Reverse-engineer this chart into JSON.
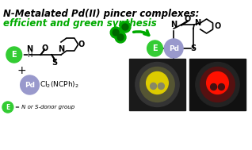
{
  "title_line1": "N-Metalated Pd(II) pincer complexes:",
  "title_line2": "efficient and green synthesis",
  "title_color": "#000000",
  "subtitle_color": "#00aa00",
  "bg_color": "#ffffff",
  "pd_circle_color": "#9999cc",
  "e_circle_color": "#33cc33",
  "arrow_color": "#00aa00",
  "ball_color": "#00aa00",
  "legend_text": "= N or S-donor group",
  "photo1_colors": {
    "bg": "#222222",
    "inner": "#888800",
    "substance": "#ddaa00"
  },
  "photo2_colors": {
    "bg": "#111111",
    "inner": "#440000",
    "substance": "#ff2200"
  }
}
